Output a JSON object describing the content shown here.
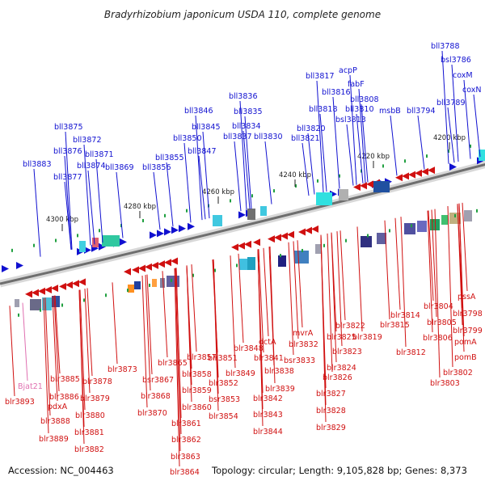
{
  "title": "Bradyrhizobium japonicum USDA 110, complete genome",
  "footer": {
    "accession": "Accession: NC_004463",
    "topology": "Topology: circular; Length: 9,105,828 bp; Genes: 8,373"
  },
  "kbp_marks": [
    "4200 kbp",
    "4220 kbp",
    "4240 kbp",
    "4260 kbp",
    "4280 kbp",
    "4300 kbp"
  ],
  "top_labels": [
    "bll3788",
    "bsl3786",
    "coxM",
    "coxN",
    "bll3789",
    "bll3794",
    "msbB",
    "bll3808",
    "bll3810",
    "bsl3813",
    "fabF",
    "acpP",
    "bll3817",
    "bll3816",
    "bll3818",
    "bll3820",
    "bll3821",
    "bll3830",
    "bll3834",
    "bll3835",
    "bll3836",
    "bll3837",
    "bll3845",
    "bll3846",
    "bll3847",
    "bll3850",
    "bll3855",
    "bll3856",
    "bll3869",
    "bll3871",
    "bll3872",
    "bll3874",
    "bll3875",
    "bll3876",
    "bll3877",
    "bll3883"
  ],
  "bottom_labels": [
    "pssA",
    "blr3798",
    "blr3799",
    "pomA",
    "pomB",
    "blr3802",
    "blr3803",
    "blr3804",
    "blr3805",
    "blr3806",
    "blr3812",
    "blr3814",
    "blr3815",
    "blr3819",
    "blr3822",
    "blr3823",
    "blr3824",
    "blr3825",
    "blr3826",
    "blr3827",
    "blr3828",
    "blr3829",
    "mvrA",
    "blr3832",
    "bsr3833",
    "dctA",
    "blr3838",
    "blr3839",
    "blr3841",
    "blr3842",
    "blr3843",
    "blr3844",
    "blr3848",
    "blr3849",
    "blr3851",
    "blr3852",
    "bsr3853",
    "blr3854",
    "blr3857",
    "blr3858",
    "blr3859",
    "blr3860",
    "blr3861",
    "blr3862",
    "blr3863",
    "blr3864",
    "blr3865",
    "bsr3867",
    "blr3868",
    "blr3870",
    "blr3873",
    "blr3878",
    "blr3879",
    "blr3880",
    "blr3881",
    "blr3882",
    "blr3885",
    "blr3886",
    "pdxA",
    "blr3888",
    "blr3889",
    "blr3893",
    "Bjat21"
  ],
  "colors": {
    "forward": "#1010d0",
    "reverse": "#d01010",
    "rna": "#e070b0",
    "axis": "#6e6e6e"
  }
}
